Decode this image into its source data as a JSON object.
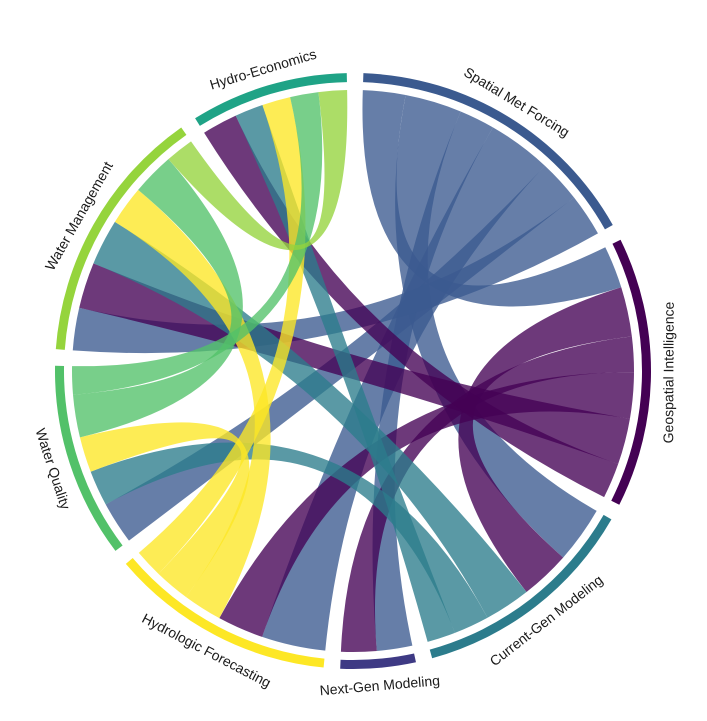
{
  "chart_data": {
    "type": "chord",
    "title": "",
    "sectors": [
      {
        "name": "Spatial Met Forcing",
        "color": "#3b5a8f"
      },
      {
        "name": "Geospatial Intelligence",
        "color": "#440154"
      },
      {
        "name": "Current-Gen Modeling",
        "color": "#2c7c8c"
      },
      {
        "name": "Next-Gen Modeling",
        "color": "#3e3a84"
      },
      {
        "name": "Hydrologic Forecasting",
        "color": "#fde725"
      },
      {
        "name": "Water Quality",
        "color": "#52c169"
      },
      {
        "name": "Water Management",
        "color": "#95d43c"
      },
      {
        "name": "Hydro-Economics",
        "color": "#1fa386"
      }
    ],
    "links": [
      {
        "from": "Spatial Met Forcing",
        "to": "Geospatial Intelligence",
        "value": 1.2
      },
      {
        "from": "Spatial Met Forcing",
        "to": "Current-Gen Modeling",
        "value": 1.6
      },
      {
        "from": "Spatial Met Forcing",
        "to": "Next-Gen Modeling",
        "value": 1.0
      },
      {
        "from": "Spatial Met Forcing",
        "to": "Hydrologic Forecasting",
        "value": 1.8
      },
      {
        "from": "Spatial Met Forcing",
        "to": "Water Quality",
        "value": 1.2
      },
      {
        "from": "Spatial Met Forcing",
        "to": "Water Management",
        "value": 1.2
      },
      {
        "from": "Geospatial Intelligence",
        "to": "Current-Gen Modeling",
        "value": 1.4
      },
      {
        "from": "Geospatial Intelligence",
        "to": "Next-Gen Modeling",
        "value": 1.0
      },
      {
        "from": "Geospatial Intelligence",
        "to": "Hydrologic Forecasting",
        "value": 1.3
      },
      {
        "from": "Geospatial Intelligence",
        "to": "Water Management",
        "value": 1.3
      },
      {
        "from": "Geospatial Intelligence",
        "to": "Hydro-Economics",
        "value": 1.0
      },
      {
        "from": "Current-Gen Modeling",
        "to": "Water Management",
        "value": 1.3
      },
      {
        "from": "Current-Gen Modeling",
        "to": "Water Quality",
        "value": 1.0
      },
      {
        "from": "Current-Gen Modeling",
        "to": "Hydro-Economics",
        "value": 0.8
      },
      {
        "from": "Hydrologic Forecasting",
        "to": "Water Management",
        "value": 1.1
      },
      {
        "from": "Hydrologic Forecasting",
        "to": "Water Quality",
        "value": 1.0
      },
      {
        "from": "Hydrologic Forecasting",
        "to": "Hydro-Economics",
        "value": 0.8
      },
      {
        "from": "Water Quality",
        "to": "Water Management",
        "value": 1.2
      },
      {
        "from": "Water Quality",
        "to": "Hydro-Economics",
        "value": 0.8
      },
      {
        "from": "Water Management",
        "to": "Hydro-Economics",
        "value": 0.8
      }
    ]
  }
}
